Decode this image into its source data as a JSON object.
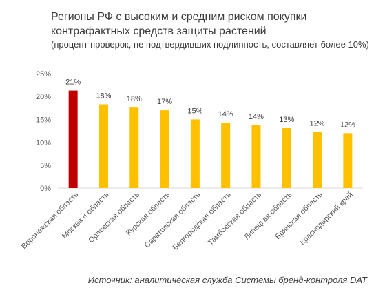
{
  "header": {
    "title": "Регионы РФ с высоким и средним риском покупки контрафактных средств защиты растений",
    "subtitle": "(процент проверок, не подтвердивших подлинность, составляет более 10%)"
  },
  "footer": {
    "source": "Источник: аналитическая служба Системы бренд-контроля DAT"
  },
  "chart_data": {
    "type": "bar",
    "title": "Регионы РФ с высоким и средним риском покупки контрафактных средств защиты растений",
    "subtitle": "(процент проверок, не подтвердивших подлинность, составляет более 10%)",
    "categories": [
      "Воронежская область",
      "Москва и область",
      "Орловская область",
      "Курская область",
      "Саратовская область",
      "Белгородская область",
      "Тамбовская область",
      "Липецкая область",
      "Брянская область",
      "Краснодарский край"
    ],
    "values": [
      21.3,
      18.3,
      17.6,
      17.0,
      15.0,
      14.3,
      13.7,
      13.1,
      12.3,
      12.0
    ],
    "data_labels": [
      "21%",
      "18%",
      "18%",
      "17%",
      "15%",
      "14%",
      "14%",
      "13%",
      "12%",
      "12%"
    ],
    "y_ticks": [
      0,
      5,
      10,
      15,
      20,
      25
    ],
    "y_tick_labels": [
      "0%",
      "5%",
      "10%",
      "15%",
      "20%",
      "25%"
    ],
    "ylim": [
      0,
      25
    ],
    "grid": "none",
    "legend": "none",
    "colors": {
      "highlight": "#c00000",
      "default": "#ffc000",
      "axis": "#d9d9d9"
    },
    "highlight_index": 0
  }
}
